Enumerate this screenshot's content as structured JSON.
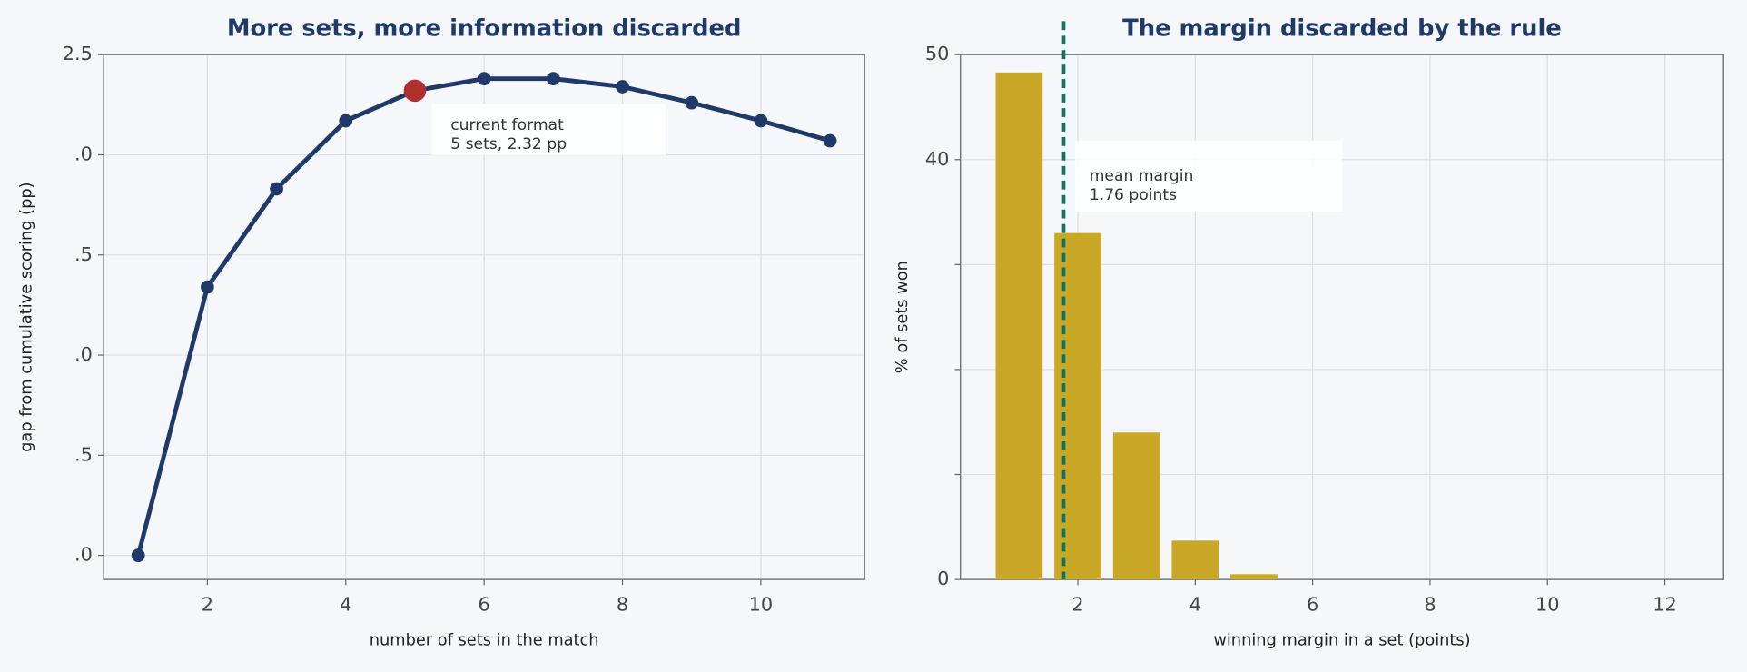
{
  "chart_data": [
    {
      "type": "line",
      "title": "More sets, more information discarded",
      "x_label": "number of sets in the match",
      "y_label": "gap from cumulative scoring (pp)",
      "x": [
        1,
        2,
        3,
        4,
        5,
        6,
        7,
        8,
        9,
        10,
        11
      ],
      "series": [
        {
          "name": "gap",
          "color": "#1f3a68",
          "values": [
            0.0,
            1.34,
            1.83,
            2.17,
            2.32,
            2.38,
            2.38,
            2.34,
            2.26,
            2.17,
            2.07
          ]
        }
      ],
      "xlim": [
        0.5,
        11.5
      ],
      "ylim": [
        -0.12,
        2.5
      ],
      "xticks": [
        2,
        4,
        6,
        8,
        10
      ],
      "yticks": [
        {
          "value": 0,
          "label": ".0"
        },
        {
          "value": 0.5,
          "label": ".5"
        },
        {
          "value": 1.0,
          "label": ".0"
        },
        {
          "value": 1.5,
          "label": ".5"
        },
        {
          "value": 2.0,
          "label": ".0"
        },
        2.5
      ],
      "grid": true,
      "annotation": {
        "text": [
          "current format",
          "5 sets, 2.32 pp"
        ],
        "x": 5,
        "y": 2.32,
        "color": "#b03030"
      }
    },
    {
      "type": "bar",
      "title": "The margin discarded by the rule",
      "x_label": "winning margin in a set (points)",
      "y_label": "% of sets won",
      "x": [
        1,
        2,
        3,
        4,
        5
      ],
      "series": [
        {
          "name": "sets won",
          "color": "#c9a827",
          "values": [
            48.3,
            33.0,
            14.0,
            3.7,
            0.5
          ]
        }
      ],
      "xlim": [
        0,
        13
      ],
      "ylim": [
        0,
        50
      ],
      "xticks": [
        2,
        4,
        6,
        8,
        10,
        12
      ],
      "yticks": [
        0,
        {
          "value": 10,
          "label": null
        },
        {
          "value": 20,
          "label": null
        },
        {
          "value": 30,
          "label": null
        },
        40,
        50
      ],
      "grid": true,
      "vline": {
        "text": [
          "mean margin",
          "1.76 points"
        ],
        "x": 1.76,
        "color": "#0e7366"
      }
    }
  ]
}
